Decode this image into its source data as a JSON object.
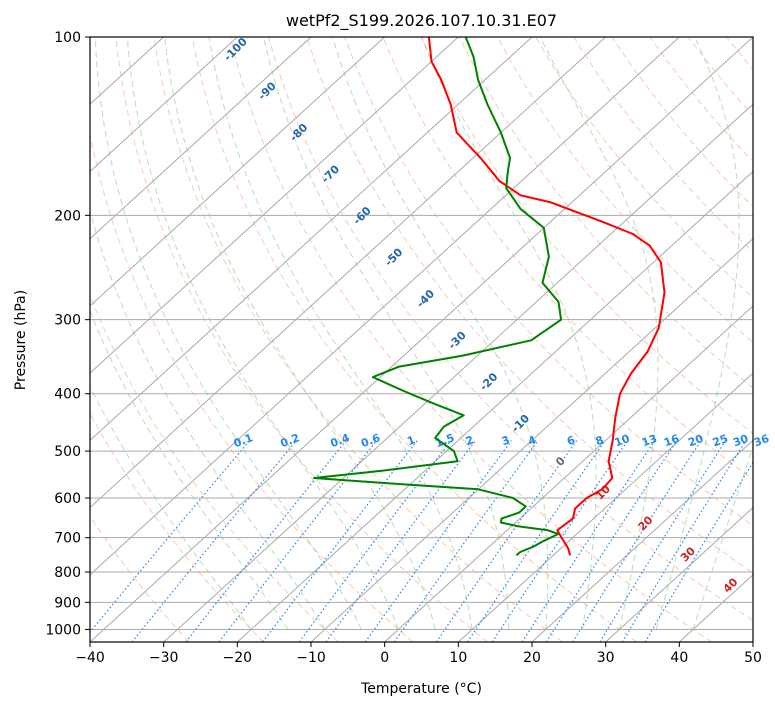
{
  "chart_data": {
    "type": "line",
    "title": "wetPf2_S199.2026.107.10.31.E07",
    "xlabel": "Temperature (°C)",
    "ylabel": "Pressure (hPa)",
    "xlim": [
      -40,
      50
    ],
    "ylim": [
      1050,
      100
    ],
    "y_scale": "log",
    "x_ticks": [
      -40,
      -30,
      -20,
      -10,
      0,
      10,
      20,
      30,
      40,
      50
    ],
    "y_ticks": [
      100,
      200,
      300,
      400,
      500,
      600,
      700,
      800,
      900,
      1000
    ],
    "grid": true,
    "series": [
      {
        "role": "temperature",
        "color": "#ff0000",
        "points": [
          [
            12.3,
            750
          ],
          [
            11,
            730
          ],
          [
            8.5,
            700
          ],
          [
            6.8,
            680
          ],
          [
            7.2,
            650
          ],
          [
            6,
            625
          ],
          [
            6,
            600
          ],
          [
            6.8,
            580
          ],
          [
            6.5,
            555
          ],
          [
            3.5,
            520
          ],
          [
            1,
            480
          ],
          [
            -2,
            440
          ],
          [
            -5,
            400
          ],
          [
            -6.5,
            370
          ],
          [
            -7.5,
            340
          ],
          [
            -9.5,
            310
          ],
          [
            -14,
            270
          ],
          [
            -19,
            240
          ],
          [
            -23,
            225
          ],
          [
            -27,
            215
          ],
          [
            -33,
            205
          ],
          [
            -43,
            190
          ],
          [
            -48,
            185
          ],
          [
            -53,
            175
          ],
          [
            -59,
            160
          ],
          [
            -66,
            145
          ],
          [
            -71,
            130
          ],
          [
            -76,
            118
          ],
          [
            -80,
            110
          ],
          [
            -84,
            100
          ]
        ]
      },
      {
        "role": "dewpoint",
        "color": "#008000",
        "points": [
          [
            5,
            750
          ],
          [
            5,
            740
          ],
          [
            6,
            725
          ],
          [
            6.5,
            710
          ],
          [
            7.5,
            690
          ],
          [
            5.5,
            680
          ],
          [
            1,
            670
          ],
          [
            -2,
            660
          ],
          [
            -2.5,
            650
          ],
          [
            -1,
            635
          ],
          [
            -1,
            620
          ],
          [
            -4,
            600
          ],
          [
            -10,
            580
          ],
          [
            -20,
            570
          ],
          [
            -34,
            555
          ],
          [
            -26,
            540
          ],
          [
            -17,
            520
          ],
          [
            -19,
            500
          ],
          [
            -23.5,
            475
          ],
          [
            -24,
            455
          ],
          [
            -23,
            435
          ],
          [
            -29,
            415
          ],
          [
            -35,
            395
          ],
          [
            -41,
            375
          ],
          [
            -39,
            360
          ],
          [
            -32,
            345
          ],
          [
            -25,
            325
          ],
          [
            -24,
            300
          ],
          [
            -27,
            280
          ],
          [
            -32,
            260
          ],
          [
            -35,
            235
          ],
          [
            -40,
            210
          ],
          [
            -46,
            195
          ],
          [
            -51,
            180
          ],
          [
            -53,
            170
          ],
          [
            -55,
            160
          ],
          [
            -60,
            145
          ],
          [
            -66,
            130
          ],
          [
            -71,
            118
          ],
          [
            -75,
            108
          ],
          [
            -79,
            100
          ]
        ]
      }
    ],
    "dry_adiabat_labels": [
      "-100",
      "-90",
      "-80",
      "-70",
      "-60",
      "-50",
      "-40",
      "-30",
      "-20",
      "-10",
      "0",
      "10",
      "20",
      "30",
      "40"
    ],
    "mixing_ratio_labels": [
      "0.1",
      "0.2",
      "0.4",
      "0.6",
      "1",
      "1.5",
      "2",
      "3",
      "4",
      "6",
      "8",
      "10",
      "13",
      "16",
      "20",
      "25",
      "30",
      "36"
    ],
    "colors": {
      "temperature": "#ff0000",
      "dewpoint": "#008000",
      "dry_adiabat_label": "#2266aa",
      "moist_adiabat_label": "#cc2222",
      "mixing_ratio": "#2288ee",
      "isotherm": "#aaaaaa",
      "isobar": "#aaaaaa"
    }
  }
}
